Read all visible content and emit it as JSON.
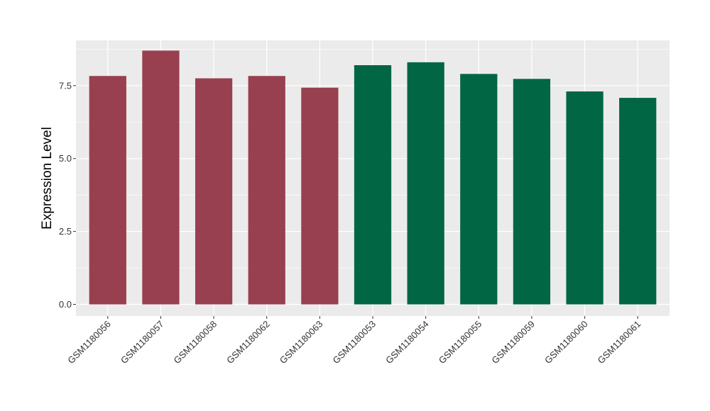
{
  "chart_data": {
    "type": "bar",
    "ylabel": "Expression Level",
    "xlabel": "",
    "title": "",
    "ylim": [
      -0.4,
      9.05
    ],
    "yticks": [
      0.0,
      2.5,
      5.0,
      7.5
    ],
    "ytick_labels": [
      "0.0",
      "2.5",
      "5.0",
      "7.5"
    ],
    "grid": true,
    "background_color": "#EBEBEB",
    "categories": [
      "GSM1180056",
      "GSM1180057",
      "GSM1180058",
      "GSM1180062",
      "GSM1180063",
      "GSM1180053",
      "GSM1180054",
      "GSM1180055",
      "GSM1180059",
      "GSM1180060",
      "GSM1180061"
    ],
    "values": [
      7.83,
      8.7,
      7.75,
      7.83,
      7.43,
      8.2,
      8.3,
      7.9,
      7.73,
      7.3,
      7.08
    ],
    "bar_colors": [
      "#98404F",
      "#98404F",
      "#98404F",
      "#98404F",
      "#98404F",
      "#006644",
      "#006644",
      "#006644",
      "#006644",
      "#006644",
      "#006644"
    ]
  }
}
